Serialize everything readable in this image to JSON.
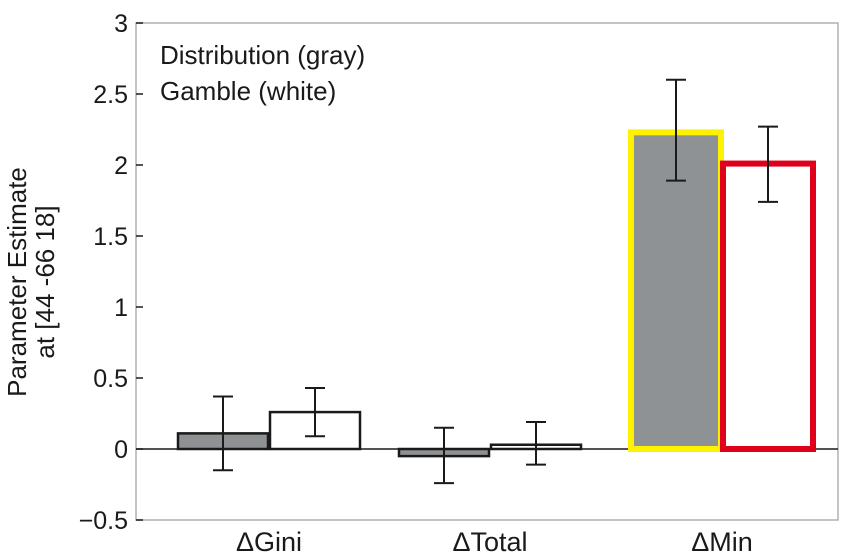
{
  "chart_data": {
    "type": "bar",
    "categories": [
      "ΔGini",
      "ΔTotal",
      "ΔMin"
    ],
    "series": [
      {
        "values": [
          0.11,
          -0.05,
          2.23
        ],
        "error_low": [
          -0.15,
          -0.24,
          1.89
        ],
        "error_high": [
          0.37,
          0.15,
          2.6
        ],
        "fill": "#8f9294",
        "stroke": [
          "#1a1a1a",
          "#1a1a1a",
          "#fff200"
        ]
      },
      {
        "values": [
          0.26,
          0.03,
          2.01
        ],
        "error_low": [
          0.09,
          -0.11,
          1.74
        ],
        "error_high": [
          0.43,
          0.19,
          2.27
        ],
        "fill": "#ffffff",
        "stroke": [
          "#1a1a1a",
          "#1a1a1a",
          "#e1001a"
        ]
      }
    ],
    "ylim": [
      -0.5,
      3
    ],
    "yticks": [
      -0.5,
      0,
      0.5,
      1,
      1.5,
      2,
      2.5,
      3
    ],
    "ytick_labels": [
      "−0.5",
      "0",
      "0.5",
      "1",
      "1.5",
      "2",
      "2.5",
      "3"
    ],
    "ylabel_lines": [
      "Parameter Estimate",
      "at [44 -66 18]"
    ],
    "legend_text": [
      "Distribution (gray)",
      "Gamble (white)"
    ],
    "legend_position": "top-left",
    "grid": false
  }
}
